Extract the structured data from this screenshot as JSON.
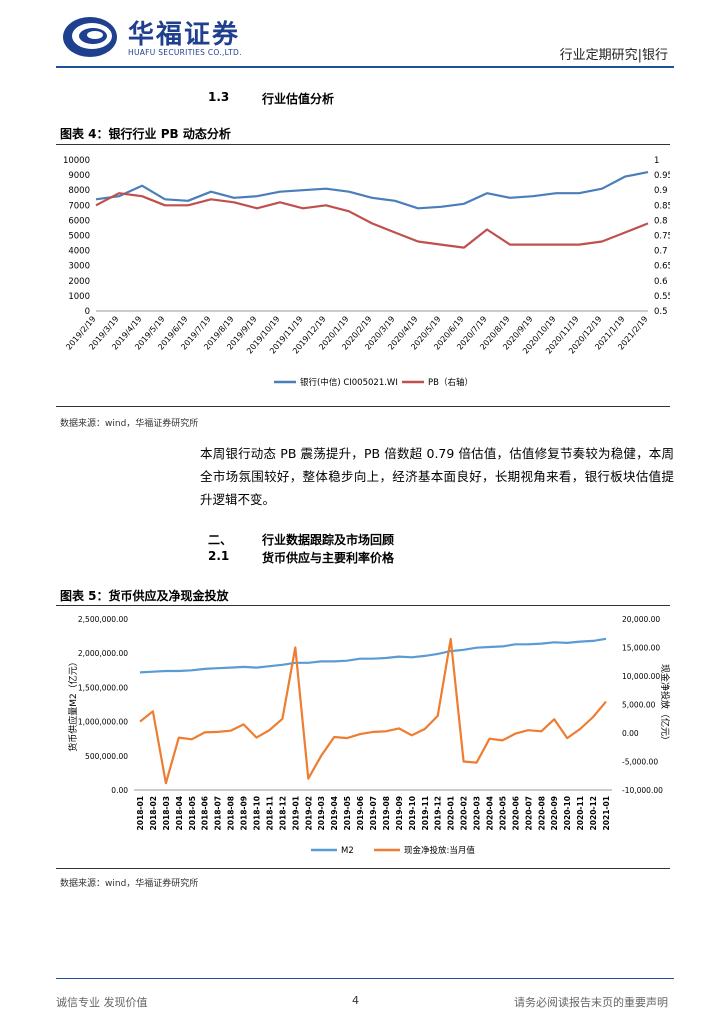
{
  "header": {
    "brand_cn": "华福证券",
    "brand_en": "HUAFU SECURITIES CO.,LTD.",
    "doc_type": "行业定期研究|银行"
  },
  "section_1_3": {
    "num": "1.3",
    "title": "行业估值分析"
  },
  "figure4": {
    "title": "图表 4：银行行业 PB 动态分析",
    "source": "数据来源：wind，华福证券研究所"
  },
  "paragraph": "本周银行动态 PB 震荡提升，PB 倍数超 0.79 倍估值，估值修复节奏较为稳健，本周全市场氛围较好，整体稳步向上，经济基本面良好，长期视角来看，银行板块估值提升逻辑不变。",
  "section_2": {
    "num": "二、",
    "title": "行业数据跟踪及市场回顾"
  },
  "section_2_1": {
    "num": "2.1",
    "title": "货币供应与主要利率价格"
  },
  "figure5": {
    "title": "图表 5：货币供应及净现金投放",
    "source": "数据来源：wind，华福证券研究所"
  },
  "footer": {
    "left": "诚信专业 发现价值",
    "page": "4",
    "right": "请务必阅读报告末页的重要声明"
  },
  "chart_data": [
    {
      "type": "line",
      "x_ticks": [
        "2019/2/19",
        "2019/3/19",
        "2019/4/19",
        "2019/5/19",
        "2019/6/19",
        "2019/7/19",
        "2019/8/19",
        "2019/9/19",
        "2019/10/19",
        "2019/11/19",
        "2019/12/19",
        "2020/1/19",
        "2020/2/19",
        "2020/3/19",
        "2020/4/19",
        "2020/5/19",
        "2020/6/19",
        "2020/7/19",
        "2020/8/19",
        "2020/9/19",
        "2020/10/19",
        "2020/11/19",
        "2020/12/19",
        "2021/1/19",
        "2021/2/19"
      ],
      "ylim_left": [
        0,
        10000
      ],
      "y_ticks_left": [
        "0",
        "1000",
        "2000",
        "3000",
        "4000",
        "5000",
        "6000",
        "7000",
        "8000",
        "9000",
        "10000"
      ],
      "ylim_right": [
        0.5,
        1
      ],
      "y_ticks_right": [
        "0.5",
        "0.55",
        "0.6",
        "0.65",
        "0.7",
        "0.75",
        "0.8",
        "0.85",
        "0.9",
        "0.95",
        "1"
      ],
      "series": [
        {
          "name": "银行(中信) CI005021.WI",
          "color": "#4a7ebb",
          "axis": "left",
          "values": [
            7400,
            7600,
            8300,
            7400,
            7300,
            7900,
            7500,
            7600,
            7900,
            8000,
            8100,
            7900,
            7500,
            7300,
            6800,
            6900,
            7100,
            7800,
            7500,
            7600,
            7800,
            7800,
            8100,
            8900,
            9200
          ]
        },
        {
          "name": "PB（右轴）",
          "color": "#c0504d",
          "axis": "right",
          "values": [
            0.85,
            0.89,
            0.88,
            0.85,
            0.85,
            0.87,
            0.86,
            0.84,
            0.86,
            0.84,
            0.85,
            0.83,
            0.79,
            0.76,
            0.73,
            0.72,
            0.71,
            0.77,
            0.72,
            0.72,
            0.72,
            0.72,
            0.73,
            0.76,
            0.79
          ]
        }
      ],
      "legend": "bottom"
    },
    {
      "type": "line",
      "categories": [
        "2018-01",
        "2018-02",
        "2018-03",
        "2018-04",
        "2018-05",
        "2018-06",
        "2018-07",
        "2018-08",
        "2018-09",
        "2018-10",
        "2018-11",
        "2018-12",
        "2019-01",
        "2019-02",
        "2019-03",
        "2019-04",
        "2019-05",
        "2019-06",
        "2019-07",
        "2019-08",
        "2019-09",
        "2019-10",
        "2019-11",
        "2019-12",
        "2020-01",
        "2020-02",
        "2020-03",
        "2020-04",
        "2020-05",
        "2020-06",
        "2020-07",
        "2020-08",
        "2020-09",
        "2020-10",
        "2020-11",
        "2020-12",
        "2021-01"
      ],
      "ylabel_left": "货币供应量M2（亿元）",
      "ylabel_right": "现金净投放（亿元）",
      "ylim_left": [
        0,
        2500000
      ],
      "y_ticks_left": [
        "0.00",
        "500,000.00",
        "1,000,000.00",
        "1,500,000.00",
        "2,000,000.00",
        "2,500,000.00"
      ],
      "ylim_right": [
        -10000,
        20000
      ],
      "y_ticks_right": [
        "-10,000.00",
        "-5,000.00",
        "0.00",
        "5,000.00",
        "10,000.00",
        "15,000.00",
        "20,000.00"
      ],
      "series": [
        {
          "name": "M2",
          "color": "#5b9bd5",
          "axis": "left",
          "values": [
            1720000,
            1730000,
            1740000,
            1740000,
            1750000,
            1770000,
            1780000,
            1790000,
            1800000,
            1790000,
            1810000,
            1830000,
            1860000,
            1860000,
            1880000,
            1880000,
            1890000,
            1920000,
            1920000,
            1930000,
            1950000,
            1940000,
            1960000,
            1990000,
            2030000,
            2050000,
            2080000,
            2090000,
            2100000,
            2130000,
            2130000,
            2140000,
            2160000,
            2150000,
            2170000,
            2180000,
            2210000
          ]
        },
        {
          "name": "现金净投放:当月值",
          "color": "#ed7d31",
          "axis": "right",
          "values": [
            2000,
            3800,
            -8800,
            -800,
            -1100,
            100,
            200,
            400,
            1500,
            -800,
            500,
            2500,
            15000,
            -8000,
            -4000,
            -700,
            -900,
            -200,
            200,
            300,
            800,
            -400,
            700,
            3000,
            16500,
            -5000,
            -5200,
            -1000,
            -1300,
            -100,
            500,
            300,
            2400,
            -900,
            700,
            2800,
            5500
          ]
        }
      ],
      "legend": "bottom"
    }
  ]
}
